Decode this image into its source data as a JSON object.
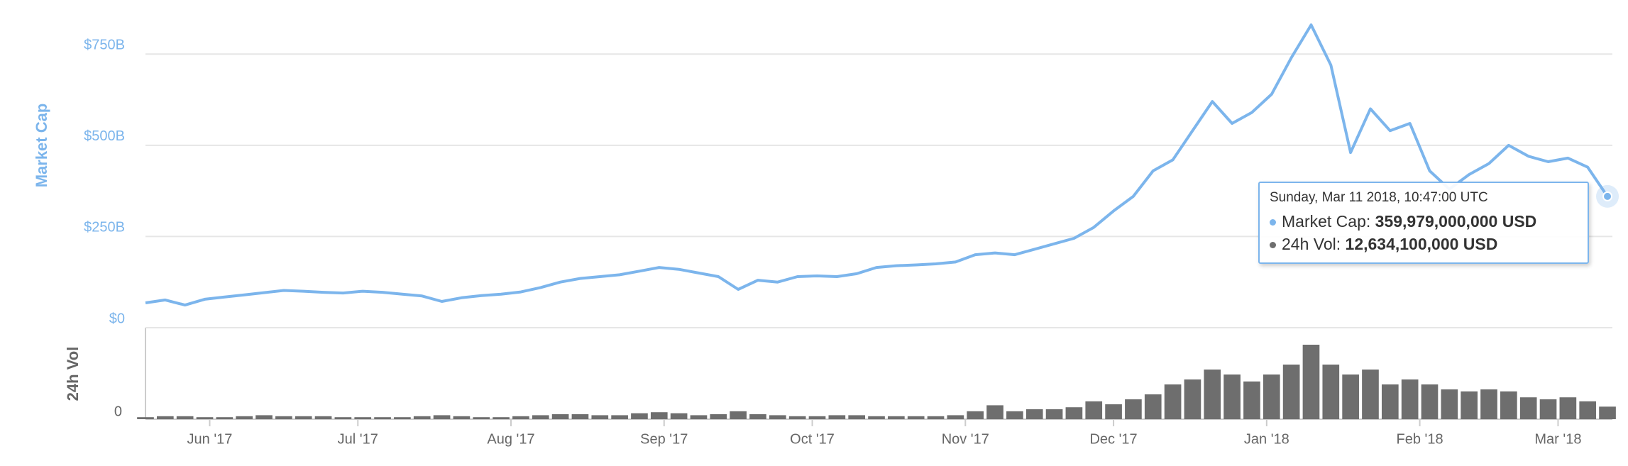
{
  "chart_data": {
    "type": "line",
    "x": [
      0,
      4,
      8,
      12,
      16,
      20,
      24,
      28,
      32,
      36,
      40,
      44,
      48,
      52,
      56,
      60,
      64,
      68,
      72,
      76,
      80,
      84,
      88,
      92,
      96,
      100,
      104,
      108,
      112,
      116,
      120,
      124,
      128,
      132,
      136,
      140,
      144,
      148,
      152,
      156,
      160,
      164,
      168,
      172,
      176,
      180,
      184,
      188,
      192,
      196,
      200,
      204,
      208,
      212,
      216,
      220,
      224,
      228,
      232,
      236,
      240,
      244,
      248,
      252,
      256,
      260,
      264,
      268,
      272,
      276,
      280,
      284,
      288,
      292,
      296
    ],
    "xlim": [
      0,
      297
    ],
    "xticks": [
      {
        "value": 13,
        "label": "Jun '17"
      },
      {
        "value": 43,
        "label": "Jul '17"
      },
      {
        "value": 74,
        "label": "Aug '17"
      },
      {
        "value": 105,
        "label": "Sep '17"
      },
      {
        "value": 135,
        "label": "Oct '17"
      },
      {
        "value": 166,
        "label": "Nov '17"
      },
      {
        "value": 196,
        "label": "Dec '17"
      },
      {
        "value": 227,
        "label": "Jan '18"
      },
      {
        "value": 258,
        "label": "Feb '18"
      },
      {
        "value": 286,
        "label": "Mar '18"
      }
    ],
    "ylim": [
      0,
      875
    ],
    "yticks": [
      {
        "value": 0,
        "label": "$0"
      },
      {
        "value": 250,
        "label": "$250B"
      },
      {
        "value": 500,
        "label": "$500B"
      },
      {
        "value": 750,
        "label": "$750B"
      }
    ],
    "y2lim": [
      0,
      90
    ],
    "y2ticks": [
      0
    ],
    "grid": true,
    "series": [
      {
        "name": "Market Cap",
        "color": "#7cb5ec",
        "values": [
          68,
          76,
          62,
          78,
          84,
          90,
          96,
          102,
          100,
          97,
          95,
          100,
          97,
          92,
          87,
          72,
          82,
          88,
          92,
          98,
          110,
          125,
          135,
          140,
          145,
          155,
          165,
          160,
          150,
          140,
          105,
          130,
          125,
          140,
          142,
          140,
          148,
          165,
          170,
          172,
          175,
          180,
          200,
          205,
          200,
          215,
          230,
          245,
          275,
          320,
          360,
          430,
          460,
          540,
          620,
          560,
          590,
          640,
          740,
          830,
          720,
          480,
          600,
          540,
          560,
          430,
          380,
          420,
          450,
          500,
          470,
          455,
          465,
          440,
          359.979
        ]
      },
      {
        "name": "24h Vol",
        "color": "#6e6e6e",
        "axis": "y2",
        "values": [
          2,
          3,
          3,
          2,
          2,
          3,
          4,
          3,
          3,
          3,
          2,
          2,
          2,
          2,
          3,
          4,
          3,
          2,
          2,
          3,
          4,
          5,
          5,
          4,
          4,
          6,
          7,
          6,
          4,
          5,
          8,
          5,
          4,
          3,
          3,
          4,
          4,
          3,
          3,
          3,
          3,
          4,
          8,
          14,
          8,
          10,
          10,
          12,
          18,
          15,
          20,
          25,
          35,
          40,
          50,
          45,
          38,
          45,
          55,
          75,
          55,
          45,
          50,
          35,
          40,
          35,
          30,
          28,
          30,
          28,
          22,
          20,
          22,
          18,
          12.6341
        ]
      }
    ],
    "tooltip": {
      "date": "Sunday, Mar 11 2018, 10:47:00 UTC",
      "items": [
        {
          "label": "Market Cap:",
          "value": "359,979,000,000 USD"
        },
        {
          "label": "24h Vol:",
          "value": "12,634,100,000 USD"
        }
      ]
    }
  }
}
